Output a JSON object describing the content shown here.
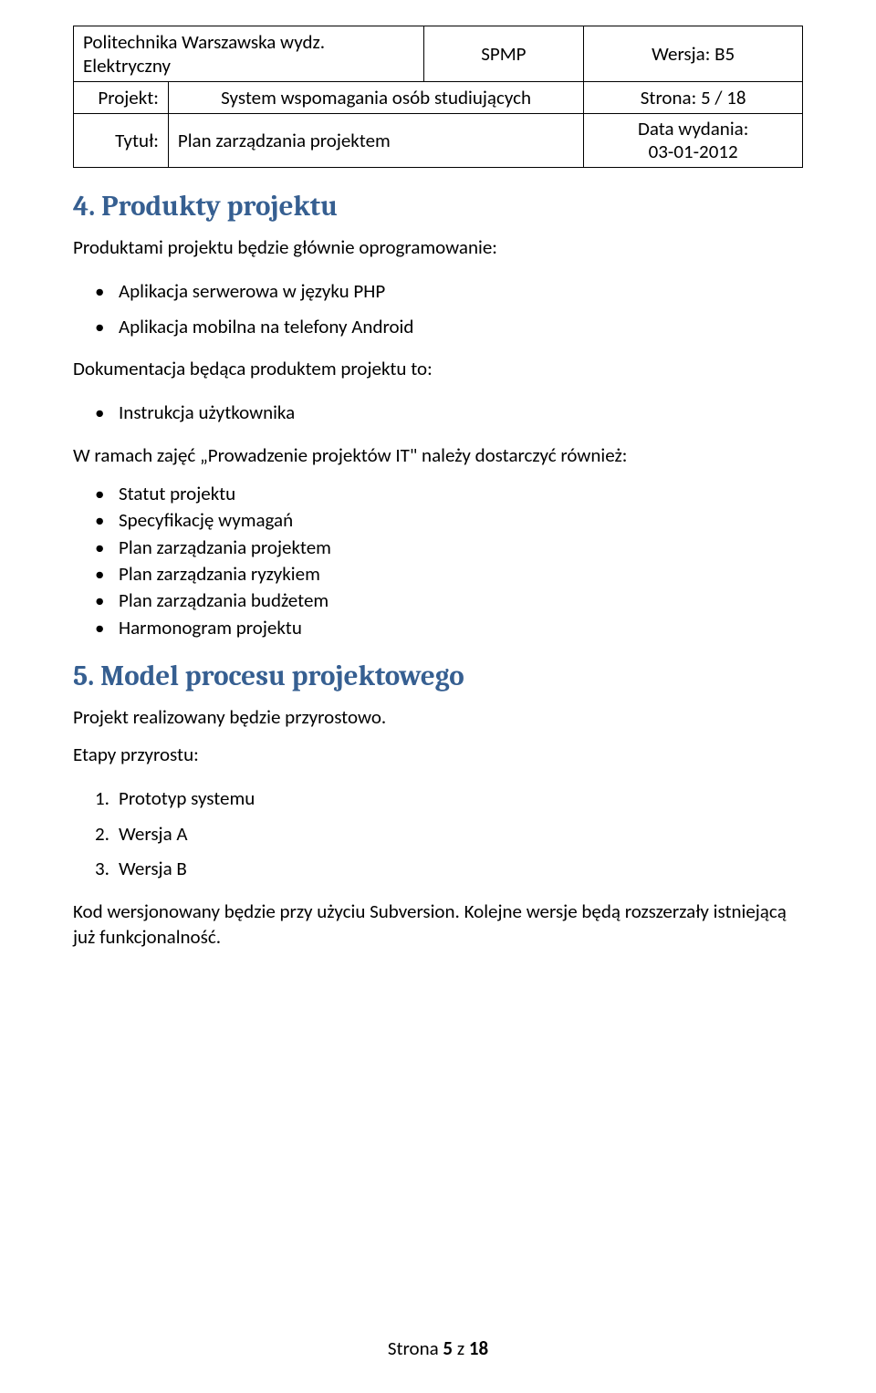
{
  "header": {
    "institution": "Politechnika Warszawska wydz. Elektryczny",
    "code": "SPMP",
    "version": "Wersja: B5",
    "project_label": "Projekt:",
    "project_name": "System wspomagania osób studiujących",
    "page_info": "Strona: 5 / 18",
    "title_label": "Tytuł:",
    "title_main": "Plan zarządzania projektem",
    "date_label": "Data wydania:",
    "date_value": "03-01-2012"
  },
  "section4": {
    "heading": "4. Produkty projektu",
    "intro": "Produktami projektu będzie głównie oprogramowanie:",
    "list1": [
      "Aplikacja serwerowa w języku PHP",
      "Aplikacja mobilna na telefony Android"
    ],
    "doc_intro": "Dokumentacja będąca produktem projektu to:",
    "list2": [
      "Instrukcja użytkownika"
    ],
    "class_intro": "W ramach zajęć „Prowadzenie projektów IT\" należy dostarczyć również:",
    "list3": [
      "Statut projektu",
      "Specyfikację wymagań",
      "Plan zarządzania projektem",
      "Plan zarządzania ryzykiem",
      "Plan zarządzania budżetem",
      "Harmonogram projektu"
    ]
  },
  "section5": {
    "heading": "5. Model procesu projektowego",
    "line1": "Projekt realizowany będzie przyrostowo.",
    "line2": "Etapy przyrostu:",
    "stages": [
      "Prototyp systemu",
      "Wersja A",
      "Wersja B"
    ],
    "closing": "Kod wersjonowany będzie przy użyciu Subversion. Kolejne wersje będą rozszerzały istniejącą już funkcjonalność."
  },
  "footer": {
    "prefix": "Strona ",
    "page": "5",
    "mid": " z ",
    "total": "18"
  }
}
